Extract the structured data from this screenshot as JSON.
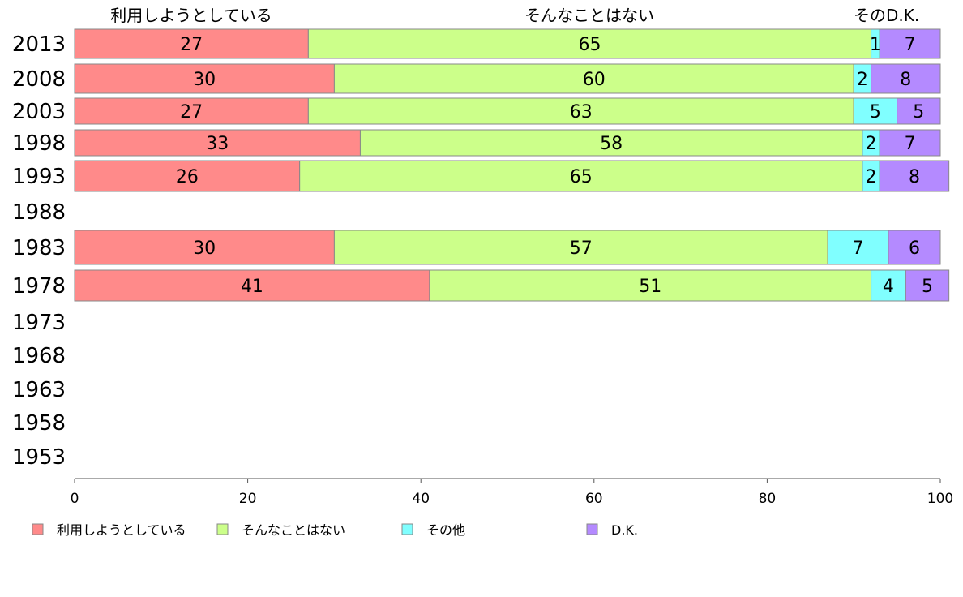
{
  "chart_data": {
    "type": "bar",
    "orientation": "horizontal",
    "stacked": true,
    "categories": [
      "2013",
      "2008",
      "2003",
      "1998",
      "1993",
      "1988",
      "1983",
      "1978",
      "1973",
      "1968",
      "1963",
      "1958",
      "1953"
    ],
    "series": [
      {
        "name": "利用しようとしている",
        "color": "#ff8a8a",
        "values": [
          27,
          30,
          27,
          33,
          26,
          null,
          30,
          41,
          null,
          null,
          null,
          null,
          null
        ]
      },
      {
        "name": "そんなことはない",
        "color": "#ccff8a",
        "values": [
          65,
          60,
          63,
          58,
          65,
          null,
          57,
          51,
          null,
          null,
          null,
          null,
          null
        ]
      },
      {
        "name": "その他",
        "color": "#80ffff",
        "values": [
          1,
          2,
          5,
          2,
          2,
          null,
          7,
          4,
          null,
          null,
          null,
          null,
          null
        ]
      },
      {
        "name": "D.K.",
        "color": "#b48aff",
        "values": [
          7,
          8,
          5,
          7,
          8,
          null,
          6,
          5,
          null,
          null,
          null,
          null,
          null
        ]
      }
    ],
    "top_labels": [
      "利用しようとしている",
      "そんなことはない",
      "その",
      "D.K."
    ],
    "xlim": [
      0,
      100
    ],
    "xticks": [
      0,
      20,
      40,
      60,
      80,
      100
    ],
    "legend_position": "bottom",
    "grid": false
  }
}
